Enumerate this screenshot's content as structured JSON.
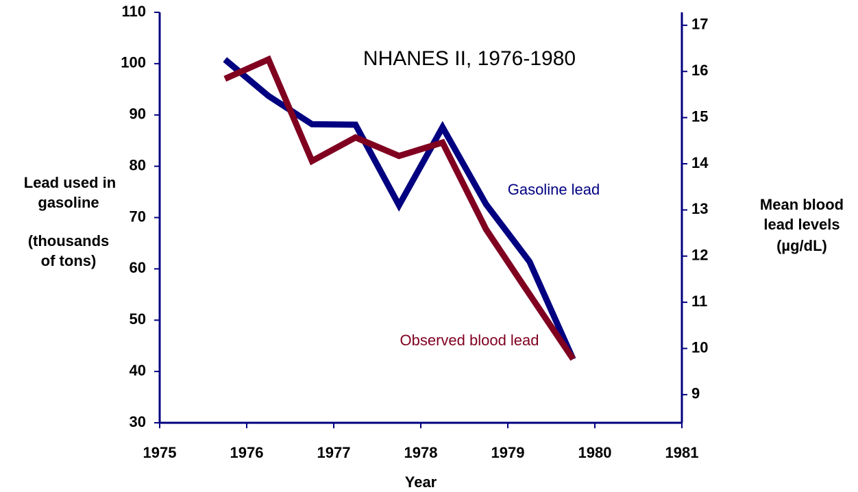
{
  "chart_data": {
    "type": "line",
    "title": "NHANES II, 1976-1980",
    "x_label": "Year",
    "y_label": [
      "Lead used in",
      "gasoline",
      "(thousands",
      "of tons)"
    ],
    "y2_label": [
      "Mean blood",
      "lead levels",
      "(µg/dL)"
    ],
    "x": [
      1975.75,
      1976.25,
      1976.75,
      1977.25,
      1977.75,
      1978.25,
      1978.75,
      1979.25,
      1979.75
    ],
    "series": [
      {
        "name": "Gasoline lead",
        "color": "#000080",
        "values": [
          100.8,
          93.7,
          88.2,
          88.1,
          72.4,
          87.6,
          72.6,
          61.4,
          42.4
        ]
      },
      {
        "name": "Observed blood lead",
        "color": "#800020",
        "axis": "y2",
        "values": [
          15.84,
          16.26,
          14.06,
          14.57,
          14.17,
          14.46,
          12.58,
          11.17,
          9.77
        ]
      }
    ],
    "xlim": [
      1975,
      1981
    ],
    "xticks": [
      1975,
      1976,
      1977,
      1978,
      1979,
      1980,
      1981
    ],
    "ylim": [
      30,
      110
    ],
    "yticks": [
      30,
      40,
      50,
      60,
      70,
      80,
      90,
      100,
      110
    ],
    "y2lim": [
      8.39,
      17.28
    ],
    "y2ticks": [
      9,
      10,
      11,
      12,
      13,
      14,
      15,
      16,
      17
    ]
  }
}
